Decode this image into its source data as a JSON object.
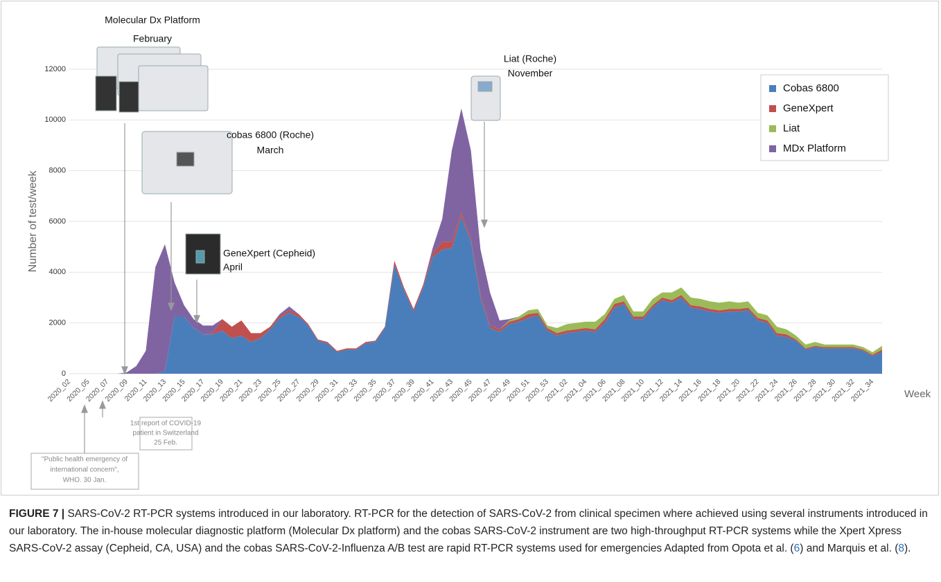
{
  "chart_data": {
    "type": "area",
    "stacked": true,
    "y_label": "Number of test/week",
    "x_label": "Week",
    "categories": [
      "2020_02",
      null,
      "2020_05",
      null,
      "2020_07",
      null,
      "2020_09",
      null,
      "2020_11",
      null,
      "2020_13",
      null,
      "2020_15",
      null,
      "2020_17",
      null,
      "2020_19",
      null,
      "2020_21",
      null,
      "2020_23",
      null,
      "2020_25",
      null,
      "2020_27",
      null,
      "2020_29",
      null,
      "2020_31",
      null,
      "2020_33",
      null,
      "2020_35",
      null,
      "2020_37",
      null,
      "2020_39",
      null,
      "2020_41",
      null,
      "2020_43",
      null,
      "2020_45",
      null,
      "2020_47",
      null,
      "2020_49",
      null,
      "2020_51",
      null,
      "2020_53",
      null,
      "2021_02",
      null,
      "2021_04",
      null,
      "2021_06",
      null,
      "2021_08",
      null,
      "2021_10",
      null,
      "2021_12",
      null,
      "2021_14",
      null,
      "2021_16",
      null,
      "2021_18",
      null,
      "2021_20",
      null,
      "2021_22",
      null,
      "2021_24",
      null,
      "2021_26",
      null,
      "2021_28",
      null,
      "2021_30",
      null,
      "2021_32",
      null,
      "2021_34",
      null
    ],
    "series": [
      {
        "name": "Cobas 6800",
        "color": "#4a7ebb",
        "values": [
          0,
          0,
          0,
          0,
          0,
          0,
          0,
          0,
          0,
          0,
          100,
          2250,
          2250,
          1800,
          1550,
          1550,
          1700,
          1400,
          1500,
          1250,
          1400,
          1750,
          2200,
          2400,
          2250,
          1900,
          1300,
          1200,
          850,
          950,
          950,
          1200,
          1250,
          1800,
          4300,
          3300,
          2450,
          3400,
          4600,
          4900,
          4950,
          6200,
          5200,
          3000,
          1800,
          1650,
          1950,
          2050,
          2200,
          2300,
          1700,
          1500,
          1600,
          1650,
          1700,
          1650,
          2000,
          2600,
          2750,
          2150,
          2150,
          2600,
          2900,
          2800,
          3000,
          2600,
          2550,
          2450,
          2400,
          2450,
          2450,
          2500,
          2100,
          2000,
          1500,
          1450,
          1300,
          950,
          1050,
          1000,
          1000,
          1000,
          1000,
          900,
          700,
          850
        ]
      },
      {
        "name": "GeneXpert",
        "color": "#c0504d",
        "values": [
          0,
          0,
          0,
          0,
          0,
          0,
          0,
          0,
          0,
          0,
          0,
          0,
          0,
          0,
          0,
          50,
          450,
          450,
          600,
          350,
          200,
          100,
          100,
          100,
          100,
          50,
          50,
          50,
          50,
          50,
          50,
          50,
          50,
          50,
          150,
          100,
          100,
          100,
          150,
          300,
          250,
          150,
          100,
          100,
          100,
          100,
          100,
          100,
          150,
          100,
          100,
          100,
          100,
          100,
          100,
          100,
          150,
          150,
          100,
          100,
          100,
          100,
          100,
          100,
          100,
          100,
          100,
          100,
          100,
          100,
          100,
          100,
          100,
          100,
          100,
          100,
          50,
          50,
          50,
          50,
          50,
          50,
          50,
          50,
          50,
          100
        ]
      },
      {
        "name": "Liat",
        "color": "#9bbb59",
        "values": [
          0,
          0,
          0,
          0,
          0,
          0,
          0,
          0,
          0,
          0,
          0,
          0,
          0,
          0,
          0,
          0,
          0,
          0,
          0,
          0,
          0,
          0,
          0,
          0,
          0,
          0,
          0,
          0,
          0,
          0,
          0,
          0,
          0,
          0,
          0,
          0,
          0,
          0,
          0,
          0,
          0,
          0,
          0,
          0,
          0,
          0,
          50,
          100,
          150,
          150,
          100,
          200,
          250,
          250,
          250,
          300,
          200,
          200,
          250,
          200,
          200,
          250,
          200,
          300,
          300,
          300,
          300,
          300,
          300,
          300,
          250,
          250,
          200,
          200,
          250,
          200,
          150,
          150,
          150,
          100,
          100,
          100,
          100,
          100,
          100,
          150
        ]
      },
      {
        "name": "MDx Platform",
        "color": "#8064a2",
        "values": [
          0,
          0,
          0,
          0,
          0,
          0,
          50,
          300,
          900,
          4200,
          5000,
          1350,
          450,
          350,
          350,
          300,
          0,
          0,
          0,
          0,
          0,
          0,
          50,
          150,
          0,
          0,
          0,
          0,
          0,
          0,
          0,
          0,
          0,
          0,
          0,
          0,
          0,
          0,
          200,
          900,
          3600,
          4100,
          3500,
          1800,
          1300,
          350,
          50,
          0,
          0,
          0,
          0,
          0,
          0,
          0,
          0,
          0,
          0,
          0,
          0,
          0,
          0,
          0,
          0,
          0,
          0,
          0,
          0,
          0,
          0,
          0,
          0,
          0,
          0,
          0,
          0,
          0,
          0,
          0,
          0,
          0,
          0,
          0,
          0,
          0,
          0,
          0
        ]
      }
    ],
    "ylim": [
      0,
      12000
    ],
    "yticks": [
      0,
      2000,
      4000,
      6000,
      8000,
      10000,
      12000
    ],
    "grid": true,
    "legend": "upper right",
    "annotations": [
      {
        "lines": [
          "Molecular Dx Platform",
          "February"
        ]
      },
      {
        "lines": [
          "cobas 6800 (Roche)",
          "March"
        ]
      },
      {
        "lines": [
          "GeneXpert (Cepheid)",
          "April"
        ]
      },
      {
        "lines": [
          "Liat (Roche)",
          "November"
        ]
      },
      {
        "lines": [
          "1st report of COVID-19",
          "patient in Switzerland",
          "25 Feb."
        ]
      },
      {
        "lines": [
          "\"Public health emergency of",
          "international concern\",",
          "WHO. 30 Jan."
        ]
      }
    ]
  },
  "caption": {
    "label": "FIGURE 7 |",
    "parts": [
      "SARS-CoV-2 RT-PCR systems introduced in our laboratory. RT-PCR for the detection of SARS-CoV-2 from clinical specimen where achieved using several instruments introduced in our laboratory. The in-house molecular diagnostic platform (Molecular Dx platform) and the cobas SARS-CoV-2 instrument are two high-throughput RT-PCR systems while the Xpert Xpress SARS-CoV-2 assay (Cepheid, CA, USA) and the cobas SARS-CoV-2-Influenza A/B test are rapid RT-PCR systems used for emergencies Adapted from Opota et al. (",
      "6",
      ") and Marquis et al. (",
      "8",
      ")."
    ]
  }
}
